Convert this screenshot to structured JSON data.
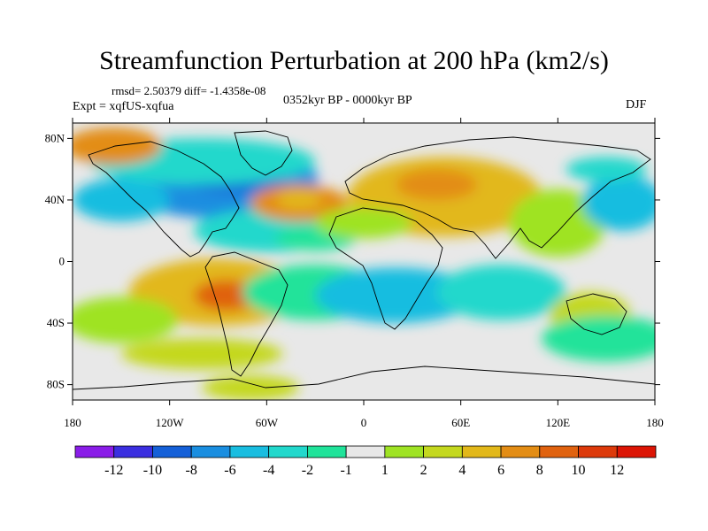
{
  "title": "Streamfunction Perturbation at 200 hPa (km2/s)",
  "stats": "rmsd= 2.50379 diff= -1.4358e-08",
  "experiment": "Expt = xqfUS-xqfua",
  "period": "0352kyr BP - 0000kyr BP",
  "season": "DJF",
  "chart_data": {
    "type": "heatmap",
    "projection": "cylindrical-equidistant",
    "lon_range": [
      -180,
      180
    ],
    "lat_range": [
      -90,
      90
    ],
    "x_ticks": [
      {
        "lon": -180,
        "label": "180"
      },
      {
        "lon": -120,
        "label": "120W"
      },
      {
        "lon": -60,
        "label": "60W"
      },
      {
        "lon": 0,
        "label": "0"
      },
      {
        "lon": 60,
        "label": "60E"
      },
      {
        "lon": 120,
        "label": "120E"
      },
      {
        "lon": 180,
        "label": "180"
      }
    ],
    "y_ticks": [
      {
        "lat": 80,
        "label": "80N"
      },
      {
        "lat": 40,
        "label": "40N"
      },
      {
        "lat": 0,
        "label": "0"
      },
      {
        "lat": -40,
        "label": "40S"
      },
      {
        "lat": -80,
        "label": "80S"
      }
    ],
    "colorbar": {
      "labels": [
        "-12",
        "-10",
        "-8",
        "-6",
        "-4",
        "-2",
        "-1",
        "1",
        "2",
        "4",
        "6",
        "8",
        "10",
        "12"
      ],
      "colors": [
        "#8a1de8",
        "#3b2fe0",
        "#1560d8",
        "#1a8ee0",
        "#19bde0",
        "#22d8cc",
        "#20e39a",
        "#e8e8e8",
        "#9fe324",
        "#c4d81f",
        "#e2b81a",
        "#e38d15",
        "#e0620f",
        "#dd3a0b",
        "#dc1505"
      ]
    },
    "features": [
      {
        "lon": -90,
        "lat": 52,
        "rx": 62,
        "ry": 24,
        "level": 3
      },
      {
        "lon": -80,
        "lat": 55,
        "rx": 32,
        "ry": 10,
        "level": 2
      },
      {
        "lon": -150,
        "lat": 40,
        "rx": 30,
        "ry": 14,
        "level": 4
      },
      {
        "lon": -60,
        "lat": 20,
        "rx": 45,
        "ry": 14,
        "level": 5
      },
      {
        "lon": -30,
        "lat": 15,
        "rx": 25,
        "ry": 8,
        "level": 6
      },
      {
        "lon": -100,
        "lat": 65,
        "rx": 70,
        "ry": 15,
        "level": 5
      },
      {
        "lon": -155,
        "lat": 75,
        "rx": 30,
        "ry": 12,
        "level": 11
      },
      {
        "lon": -40,
        "lat": 38,
        "rx": 30,
        "ry": 12,
        "level": 11
      },
      {
        "lon": -40,
        "lat": 40,
        "rx": 14,
        "ry": 6,
        "level": 10
      },
      {
        "lon": 50,
        "lat": 42,
        "rx": 60,
        "ry": 26,
        "level": 10
      },
      {
        "lon": 45,
        "lat": 50,
        "rx": 25,
        "ry": 10,
        "level": 11
      },
      {
        "lon": 85,
        "lat": 30,
        "rx": 18,
        "ry": 8,
        "level": 10
      },
      {
        "lon": 120,
        "lat": 25,
        "rx": 30,
        "ry": 22,
        "level": 8
      },
      {
        "lon": 160,
        "lat": 38,
        "rx": 25,
        "ry": 18,
        "level": 4
      },
      {
        "lon": 150,
        "lat": 60,
        "rx": 25,
        "ry": 8,
        "level": 5
      },
      {
        "lon": 0,
        "lat": 25,
        "rx": 30,
        "ry": 10,
        "level": 8
      },
      {
        "lon": -90,
        "lat": -20,
        "rx": 55,
        "ry": 22,
        "level": 10
      },
      {
        "lon": -85,
        "lat": -22,
        "rx": 20,
        "ry": 10,
        "level": 12
      },
      {
        "lon": -150,
        "lat": -38,
        "rx": 35,
        "ry": 15,
        "level": 8
      },
      {
        "lon": -30,
        "lat": -20,
        "rx": 45,
        "ry": 18,
        "level": 6
      },
      {
        "lon": 20,
        "lat": -22,
        "rx": 50,
        "ry": 18,
        "level": 4
      },
      {
        "lon": 85,
        "lat": -20,
        "rx": 40,
        "ry": 18,
        "level": 5
      },
      {
        "lon": 140,
        "lat": -35,
        "rx": 25,
        "ry": 15,
        "level": 9
      },
      {
        "lon": 150,
        "lat": -50,
        "rx": 40,
        "ry": 15,
        "level": 6
      },
      {
        "lon": -100,
        "lat": -60,
        "rx": 50,
        "ry": 10,
        "level": 9
      },
      {
        "lon": -70,
        "lat": -82,
        "rx": 30,
        "ry": 8,
        "level": 9
      }
    ]
  }
}
